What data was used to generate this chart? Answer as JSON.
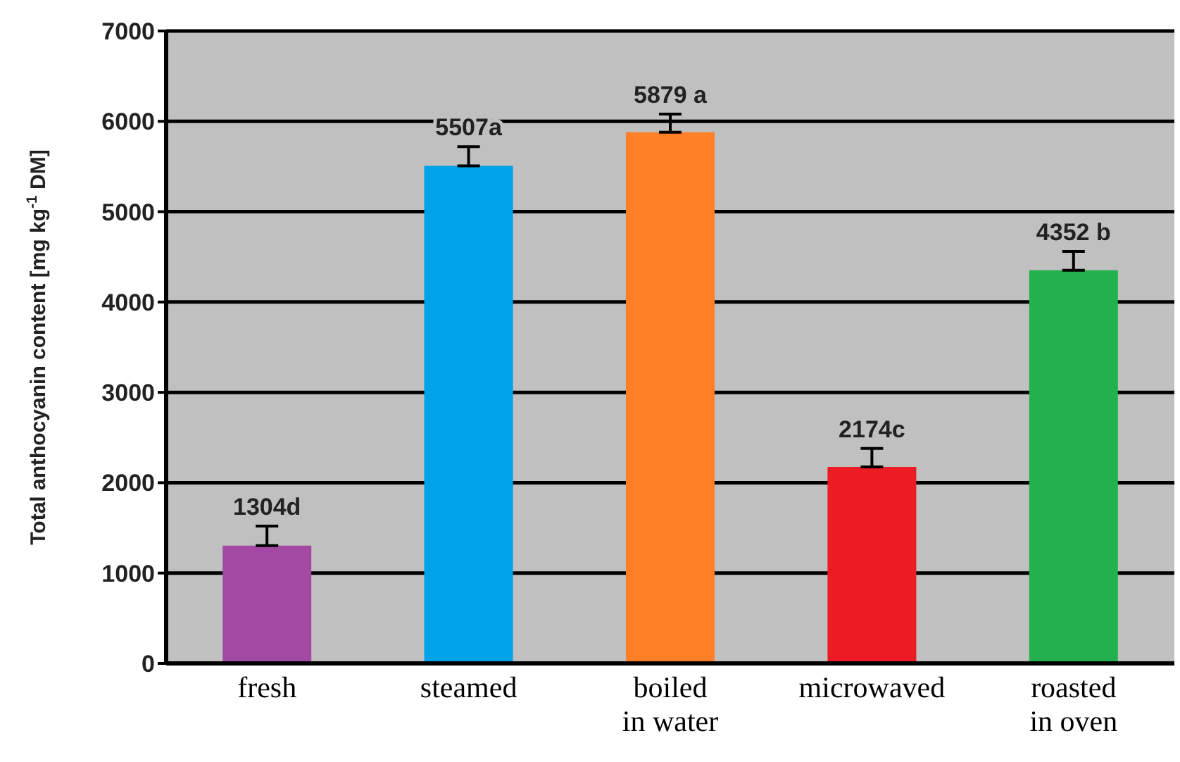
{
  "chart_data": {
    "type": "bar",
    "ylabel": "Total anthocyanin content [mg kg$^{-1}$ DM]",
    "categories": [
      "fresh",
      "steamed",
      "boiled in water",
      "microwaved",
      "roasted in oven"
    ],
    "values": [
      1304,
      5507,
      5879,
      2174,
      4352
    ],
    "colors": [
      "#a349a4",
      "#00a2e8",
      "#ff7f27",
      "#ed1c24",
      "#22b14c"
    ],
    "errors": [
      [
        1304,
        1520
      ],
      [
        5507,
        5720
      ],
      [
        5879,
        6080
      ],
      [
        2174,
        2380
      ],
      [
        4352,
        4560
      ]
    ],
    "value_labels": [
      "1304d",
      "5507a",
      "5879 a",
      "2174c",
      "4352 b"
    ],
    "ylim": [
      0,
      7000
    ],
    "yticks": [
      0,
      1000,
      2000,
      3000,
      4000,
      5000,
      6000,
      7000
    ],
    "grid": "y",
    "legend": false
  }
}
